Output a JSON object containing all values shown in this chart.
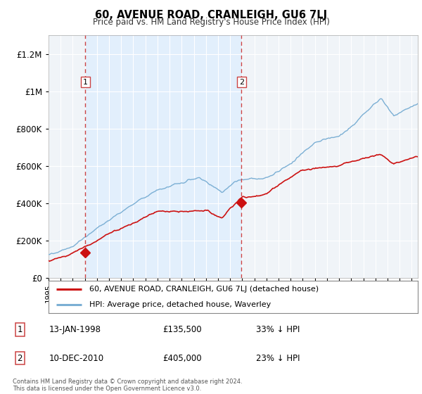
{
  "title": "60, AVENUE ROAD, CRANLEIGH, GU6 7LJ",
  "subtitle": "Price paid vs. HM Land Registry's House Price Index (HPI)",
  "ylim": [
    0,
    1300000
  ],
  "yticks": [
    0,
    200000,
    400000,
    600000,
    800000,
    1000000,
    1200000
  ],
  "ytick_labels": [
    "£0",
    "£200K",
    "£400K",
    "£600K",
    "£800K",
    "£1M",
    "£1.2M"
  ],
  "xlim_start": 1995.0,
  "xlim_end": 2025.5,
  "background_color": "#ffffff",
  "plot_bg_color": "#f0f4f8",
  "grid_color": "#ffffff",
  "hpi_line_color": "#7bafd4",
  "price_line_color": "#cc1111",
  "sale1_x": 1998.04,
  "sale1_y": 135500,
  "sale1_label": "1",
  "sale1_date": "13-JAN-1998",
  "sale1_price": "£135,500",
  "sale1_pct": "33% ↓ HPI",
  "sale2_x": 2010.94,
  "sale2_y": 405000,
  "sale2_label": "2",
  "sale2_date": "10-DEC-2010",
  "sale2_price": "£405,000",
  "sale2_pct": "23% ↓ HPI",
  "legend_line1": "60, AVENUE ROAD, CRANLEIGH, GU6 7LJ (detached house)",
  "legend_line2": "HPI: Average price, detached house, Waverley",
  "footnote": "Contains HM Land Registry data © Crown copyright and database right 2024.\nThis data is licensed under the Open Government Licence v3.0.",
  "vline_color": "#cc4444",
  "shade_color": "#ddeeff",
  "marker_color": "#cc1111"
}
